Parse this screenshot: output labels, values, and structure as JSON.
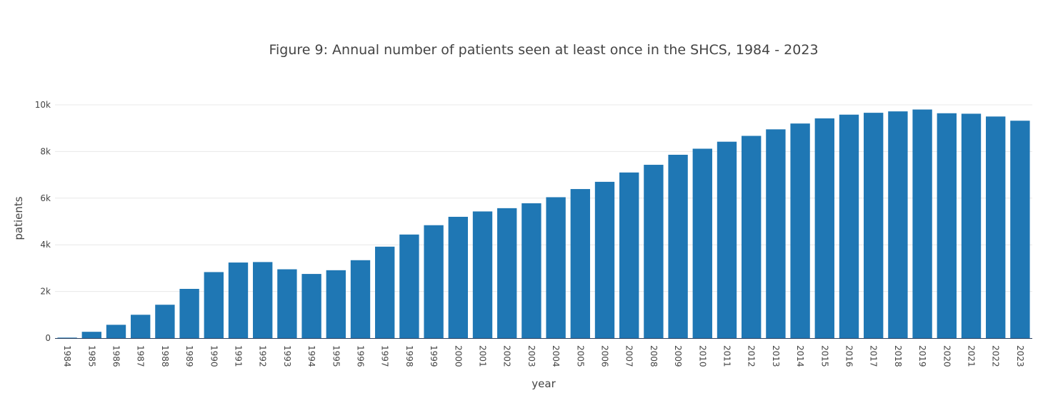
{
  "chart_data": {
    "type": "bar",
    "title": "Figure 9: Annual number of patients seen at least once in the SHCS, 1984 - 2023",
    "xlabel": "year",
    "ylabel": "patients",
    "ylim": [
      0,
      10500
    ],
    "yticks": [
      0,
      2000,
      4000,
      6000,
      8000,
      10000
    ],
    "ytick_labels": [
      "0",
      "2k",
      "4k",
      "6k",
      "8k",
      "10k"
    ],
    "grid": "horizontal",
    "bar_color": "#1f77b4",
    "categories": [
      "1984",
      "1985",
      "1986",
      "1987",
      "1988",
      "1989",
      "1990",
      "1991",
      "1992",
      "1993",
      "1994",
      "1995",
      "1996",
      "1997",
      "1998",
      "1999",
      "2000",
      "2001",
      "2002",
      "2003",
      "2004",
      "2005",
      "2006",
      "2007",
      "2008",
      "2009",
      "2010",
      "2011",
      "2012",
      "2013",
      "2014",
      "2015",
      "2016",
      "2017",
      "2018",
      "2019",
      "2020",
      "2021",
      "2022",
      "2023"
    ],
    "values": [
      20,
      270,
      570,
      1000,
      1430,
      2110,
      2830,
      3240,
      3260,
      2950,
      2750,
      2910,
      3340,
      3920,
      4440,
      4840,
      5200,
      5430,
      5570,
      5780,
      6040,
      6390,
      6700,
      7100,
      7430,
      7860,
      8120,
      8420,
      8670,
      8950,
      9200,
      9420,
      9580,
      9660,
      9720,
      9800,
      9640,
      9620,
      9500,
      9320
    ]
  }
}
